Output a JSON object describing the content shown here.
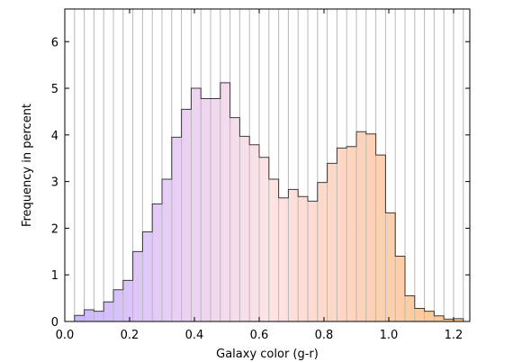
{
  "chart_data": {
    "type": "bar",
    "subtype": "histogram",
    "title": "",
    "xlabel": "Galaxy color (g-r)",
    "ylabel": "Frequency in percent",
    "xlim": [
      0.0,
      1.25
    ],
    "ylim": [
      0,
      6.7
    ],
    "x_ticks": [
      0.0,
      0.2,
      0.4,
      0.6,
      0.8,
      1.0,
      1.2
    ],
    "x_tick_labels": [
      "0.0",
      "0.2",
      "0.4",
      "0.6",
      "0.8",
      "1.0",
      "1.2"
    ],
    "y_ticks": [
      0,
      1,
      2,
      3,
      4,
      5,
      6
    ],
    "y_tick_labels": [
      "0",
      "1",
      "2",
      "3",
      "4",
      "5",
      "6"
    ],
    "grid": "vertical lines at every bin edge",
    "bin_width": 0.03,
    "bin_edges_start": 0.03,
    "values": [
      0.13,
      0.25,
      0.22,
      0.42,
      0.68,
      0.88,
      1.5,
      1.92,
      2.52,
      3.05,
      3.95,
      4.55,
      5.0,
      4.78,
      4.78,
      5.12,
      4.37,
      3.97,
      3.79,
      3.52,
      3.05,
      2.65,
      2.83,
      2.68,
      2.58,
      2.98,
      3.39,
      3.72,
      3.75,
      4.07,
      4.02,
      3.57,
      2.33,
      1.4,
      0.55,
      0.28,
      0.22,
      0.12,
      0.05,
      0.06
    ],
    "color_gradient": [
      "#c8b4fe",
      "#e6cdf6",
      "#fde4e6",
      "#fdd2b6",
      "#fdc586"
    ],
    "bar_outline": "#3a3a3a"
  }
}
